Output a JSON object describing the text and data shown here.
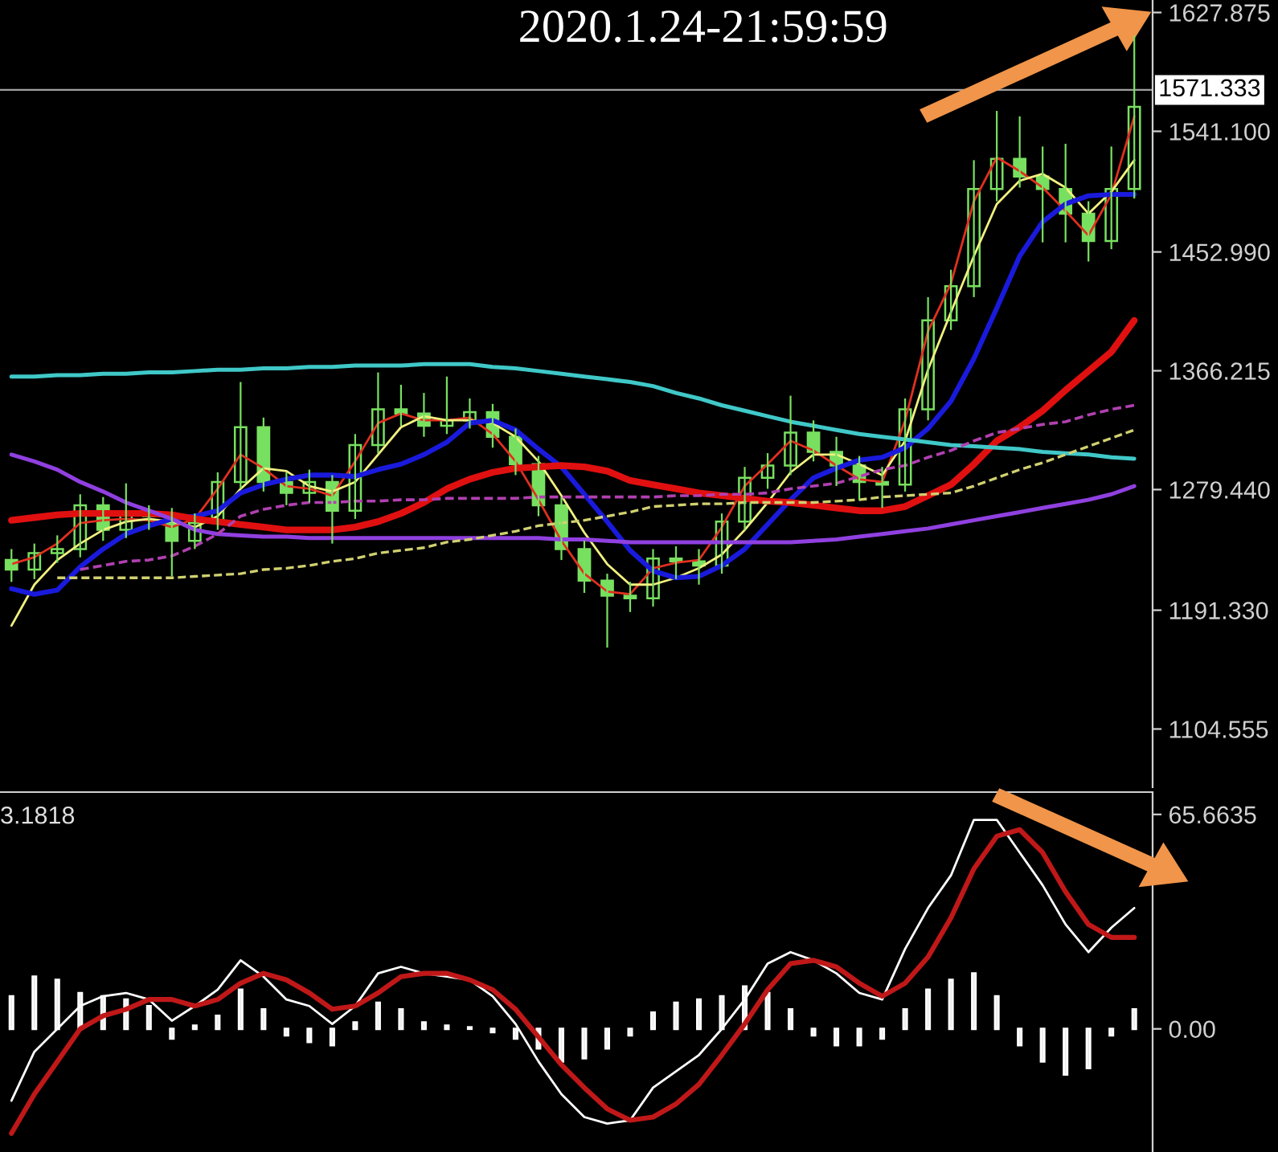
{
  "chart_data": [
    {
      "type": "candlestick",
      "title": "2020.1.24-21:59:59",
      "color": "#78e060",
      "tick_labels": "y",
      "categories": [
        null,
        null,
        null,
        null,
        null,
        null,
        null,
        null,
        null,
        null,
        null,
        null,
        null,
        null,
        null,
        null,
        null,
        null,
        null,
        null,
        null,
        null,
        null,
        null,
        null,
        null,
        null,
        null,
        null,
        null,
        null,
        null,
        null,
        null,
        null,
        null,
        null,
        null,
        null,
        null,
        null,
        null,
        null,
        null,
        null,
        null,
        null,
        null,
        null,
        null
      ],
      "ohlc": [
        [
          1228,
          1236,
          1212,
          1221
        ],
        [
          1221,
          1240,
          1214,
          1233
        ],
        [
          1233,
          1246,
          1226,
          1236
        ],
        [
          1236,
          1276,
          1230,
          1268
        ],
        [
          1268,
          1274,
          1242,
          1250
        ],
        [
          1250,
          1284,
          1244,
          1262
        ],
        [
          1262,
          1268,
          1250,
          1260
        ],
        [
          1260,
          1266,
          1216,
          1242
        ],
        [
          1242,
          1262,
          1236,
          1255
        ],
        [
          1255,
          1292,
          1250,
          1285
        ],
        [
          1285,
          1358,
          1280,
          1325
        ],
        [
          1325,
          1332,
          1278,
          1285
        ],
        [
          1285,
          1292,
          1268,
          1277
        ],
        [
          1277,
          1294,
          1270,
          1285
        ],
        [
          1285,
          1290,
          1240,
          1264
        ],
        [
          1264,
          1320,
          1258,
          1312
        ],
        [
          1312,
          1365,
          1306,
          1338
        ],
        [
          1338,
          1356,
          1326,
          1335
        ],
        [
          1335,
          1350,
          1318,
          1326
        ],
        [
          1326,
          1362,
          1320,
          1330
        ],
        [
          1330,
          1346,
          1324,
          1336
        ],
        [
          1336,
          1342,
          1310,
          1318
        ],
        [
          1318,
          1324,
          1290,
          1298
        ],
        [
          1298,
          1304,
          1260,
          1268
        ],
        [
          1268,
          1274,
          1228,
          1236
        ],
        [
          1236,
          1242,
          1204,
          1213
        ],
        [
          1213,
          1218,
          1164,
          1202
        ],
        [
          1202,
          1212,
          1190,
          1200
        ],
        [
          1200,
          1236,
          1194,
          1229
        ],
        [
          1229,
          1238,
          1214,
          1227
        ],
        [
          1227,
          1236,
          1210,
          1224
        ],
        [
          1224,
          1262,
          1218,
          1256
        ],
        [
          1256,
          1296,
          1250,
          1288
        ],
        [
          1288,
          1306,
          1280,
          1297
        ],
        [
          1297,
          1348,
          1290,
          1321
        ],
        [
          1321,
          1330,
          1300,
          1307
        ],
        [
          1307,
          1318,
          1282,
          1297
        ],
        [
          1297,
          1304,
          1272,
          1285
        ],
        [
          1285,
          1296,
          1266,
          1283
        ],
        [
          1283,
          1346,
          1278,
          1338
        ],
        [
          1338,
          1420,
          1330,
          1403
        ],
        [
          1403,
          1440,
          1396,
          1428
        ],
        [
          1428,
          1520,
          1420,
          1499
        ],
        [
          1499,
          1556,
          1490,
          1521
        ],
        [
          1521,
          1552,
          1500,
          1508
        ],
        [
          1508,
          1530,
          1460,
          1499
        ],
        [
          1499,
          1532,
          1460,
          1481
        ],
        [
          1481,
          1490,
          1446,
          1461
        ],
        [
          1461,
          1530,
          1455,
          1499
        ],
        [
          1499,
          1611,
          1492,
          1559
        ]
      ],
      "series": [
        {
          "type": "line",
          "color": "#e03020",
          "values": [
            1225,
            1230,
            1240,
            1255,
            1257,
            1258,
            1257,
            1252,
            1258,
            1280,
            1305,
            1295,
            1282,
            1280,
            1275,
            1300,
            1328,
            1335,
            1330,
            1330,
            1332,
            1320,
            1300,
            1272,
            1242,
            1218,
            1205,
            1203,
            1222,
            1226,
            1228,
            1252,
            1282,
            1298,
            1315,
            1308,
            1297,
            1287,
            1285,
            1330,
            1395,
            1430,
            1490,
            1522,
            1512,
            1500,
            1483,
            1465,
            1495,
            1552
          ]
        },
        {
          "type": "line",
          "color": "#f0f080",
          "values": [
            1180,
            1210,
            1228,
            1240,
            1250,
            1256,
            1258,
            1256,
            1252,
            1260,
            1280,
            1295,
            1293,
            1282,
            1278,
            1285,
            1305,
            1325,
            1333,
            1330,
            1330,
            1328,
            1318,
            1300,
            1275,
            1248,
            1225,
            1210,
            1210,
            1215,
            1222,
            1232,
            1250,
            1270,
            1292,
            1305,
            1305,
            1298,
            1290,
            1315,
            1367,
            1409,
            1450,
            1488,
            1505,
            1510,
            1500,
            1481,
            1497,
            1520
          ]
        },
        {
          "type": "line",
          "color": "#1a1adc",
          "values": [
            1207,
            1203,
            1206,
            1223,
            1236,
            1247,
            1253,
            1258,
            1260,
            1264,
            1277,
            1283,
            1287,
            1290,
            1290,
            1289,
            1294,
            1298,
            1305,
            1314,
            1328,
            1330,
            1323,
            1309,
            1296,
            1276,
            1256,
            1235,
            1220,
            1215,
            1216,
            1224,
            1236,
            1254,
            1272,
            1288,
            1295,
            1301,
            1303,
            1310,
            1324,
            1344,
            1375,
            1412,
            1450,
            1475,
            1488,
            1494,
            1495,
            1495
          ]
        },
        {
          "type": "line",
          "color": "#e01010",
          "values": [
            1257,
            1259,
            1261,
            1262,
            1262,
            1262,
            1262,
            1261,
            1258,
            1256,
            1254,
            1252,
            1250,
            1250,
            1250,
            1252,
            1256,
            1262,
            1270,
            1280,
            1287,
            1292,
            1295,
            1296,
            1297,
            1296,
            1293,
            1286,
            1283,
            1280,
            1277,
            1275,
            1273,
            1271,
            1270,
            1268,
            1266,
            1264,
            1264,
            1267,
            1275,
            1283,
            1298,
            1315,
            1325,
            1337,
            1352,
            1366,
            1380,
            1403
          ]
        },
        {
          "type": "line",
          "color": "#40c8c8",
          "values": [
            1362,
            1362,
            1363,
            1363,
            1364,
            1364,
            1365,
            1365,
            1366,
            1367,
            1367,
            1368,
            1368,
            1369,
            1369,
            1370,
            1370,
            1370,
            1371,
            1371,
            1371,
            1369,
            1368,
            1366,
            1364,
            1362,
            1360,
            1358,
            1355,
            1350,
            1346,
            1341,
            1337,
            1333,
            1329,
            1326,
            1323,
            1320,
            1318,
            1316,
            1314,
            1312,
            1311,
            1310,
            1309,
            1307,
            1306,
            1305,
            1303,
            1302
          ]
        },
        {
          "type": "line",
          "color": "#9040e0",
          "values": [
            1305,
            1300,
            1294,
            1285,
            1278,
            1270,
            1264,
            1258,
            1250,
            1247,
            1246,
            1245,
            1245,
            1244,
            1244,
            1244,
            1244,
            1244,
            1244,
            1244,
            1244,
            1244,
            1244,
            1244,
            1243,
            1243,
            1242,
            1241,
            1241,
            1241,
            1241,
            1241,
            1241,
            1241,
            1241,
            1242,
            1243,
            1245,
            1247,
            1249,
            1251,
            1254,
            1257,
            1260,
            1263,
            1266,
            1269,
            1272,
            1276,
            1282
          ]
        },
        {
          "type": "line",
          "color": "#b040b0",
          "line_style": "dashed",
          "values": [
            null,
            null,
            null,
            1221,
            1224,
            1227,
            1228,
            1231,
            1238,
            1247,
            1260,
            1265,
            1268,
            1270,
            1270,
            1271,
            1271,
            1272,
            1272,
            1273,
            1273,
            1273,
            1273,
            1274,
            1274,
            1274,
            1274,
            1274,
            1274,
            1275,
            1275,
            1276,
            1276,
            1277,
            1280,
            1282,
            1284,
            1289,
            1294,
            1297,
            1303,
            1308,
            1315,
            1321,
            1324,
            1327,
            1329,
            1334,
            1338,
            1341
          ]
        },
        {
          "type": "line",
          "color": "#d0d070",
          "line_style": "dashed",
          "values": [
            null,
            null,
            1215,
            1215,
            1215,
            1215,
            1215,
            1215,
            1216,
            1217,
            1218,
            1221,
            1222,
            1224,
            1227,
            1229,
            1233,
            1235,
            1237,
            1241,
            1243,
            1246,
            1249,
            1253,
            1255,
            1257,
            1260,
            1263,
            1267,
            1268,
            1269,
            1269,
            1270,
            1270,
            1270,
            1270,
            1271,
            1272,
            1274,
            1275,
            1276,
            1277,
            1282,
            1288,
            1294,
            1299,
            1305,
            1311,
            1317,
            1323
          ]
        }
      ],
      "ylim": [
        1062,
        1637
      ],
      "yticks": [
        1627.875,
        {
          "value": 1541.1,
          "label": "1541.100"
        },
        {
          "value": 1452.99,
          "label": "1452.990"
        },
        1366.215,
        {
          "value": 1279.44,
          "label": "1279.440"
        },
        {
          "value": 1191.33,
          "label": "1191.330"
        },
        1104.555
      ],
      "ref_lines": [
        {
          "axis": "y",
          "value": 1571.333,
          "label": "1571.333",
          "color": "#a0a0a0"
        }
      ]
    },
    {
      "type": "bar",
      "tick_labels": "y",
      "annotations": [
        "3.1818"
      ],
      "categories": [
        null,
        null,
        null,
        null,
        null,
        null,
        null,
        null,
        null,
        null,
        null,
        null,
        null,
        null,
        null,
        null,
        null,
        null,
        null,
        null,
        null,
        null,
        null,
        null,
        null,
        null,
        null,
        null,
        null,
        null,
        null,
        null,
        null,
        null,
        null,
        null,
        null,
        null,
        null,
        null,
        null,
        null,
        null,
        null,
        null,
        null,
        null,
        null,
        null,
        null
      ],
      "series": [
        {
          "type": "bar",
          "color": "#e8e8e8",
          "values": [
            10,
            16,
            15,
            11,
            10,
            9,
            7,
            -3,
            1,
            4,
            12,
            6,
            -2,
            -4,
            -5,
            2,
            8,
            6,
            2,
            1,
            0.5,
            -1,
            -3,
            -6,
            -10,
            -9,
            -6,
            -2,
            5,
            8,
            9,
            10,
            13,
            11,
            6,
            -2,
            -5,
            -5,
            -3,
            6,
            12,
            15,
            17,
            10,
            -5,
            -10,
            -14,
            -12,
            -2,
            6
          ]
        },
        {
          "type": "line",
          "color": "#ffffff",
          "values": [
            -22,
            -7,
            0,
            7,
            10,
            11,
            9,
            2.5,
            7,
            12,
            21,
            16,
            9,
            7,
            1.5,
            7,
            17,
            19,
            17,
            16,
            15,
            10,
            1.5,
            -10,
            -20,
            -27,
            -29,
            -28,
            -18,
            -13,
            -8,
            0,
            9,
            20,
            23.5,
            21,
            17,
            11,
            9,
            24.5,
            37,
            47,
            64,
            64,
            54,
            44,
            32,
            23.5,
            31,
            37
          ]
        },
        {
          "type": "line",
          "color": "#c01818",
          "values": [
            -32,
            -20,
            -10,
            0,
            4,
            6,
            9,
            9,
            7,
            9,
            14,
            17,
            15,
            11,
            6,
            7,
            11,
            16,
            17,
            17,
            15,
            12,
            6,
            -2.5,
            -11,
            -18,
            -24.5,
            -28,
            -27,
            -23,
            -17,
            -8,
            1.5,
            12,
            20,
            21,
            19,
            14,
            10,
            14,
            22,
            34,
            49,
            59,
            61,
            54,
            42,
            32,
            28,
            28
          ]
        }
      ],
      "ylim": [
        -37.7,
        72.5
      ],
      "yticks": [
        65.6635,
        {
          "value": 0,
          "label": "0.00"
        }
      ]
    }
  ]
}
